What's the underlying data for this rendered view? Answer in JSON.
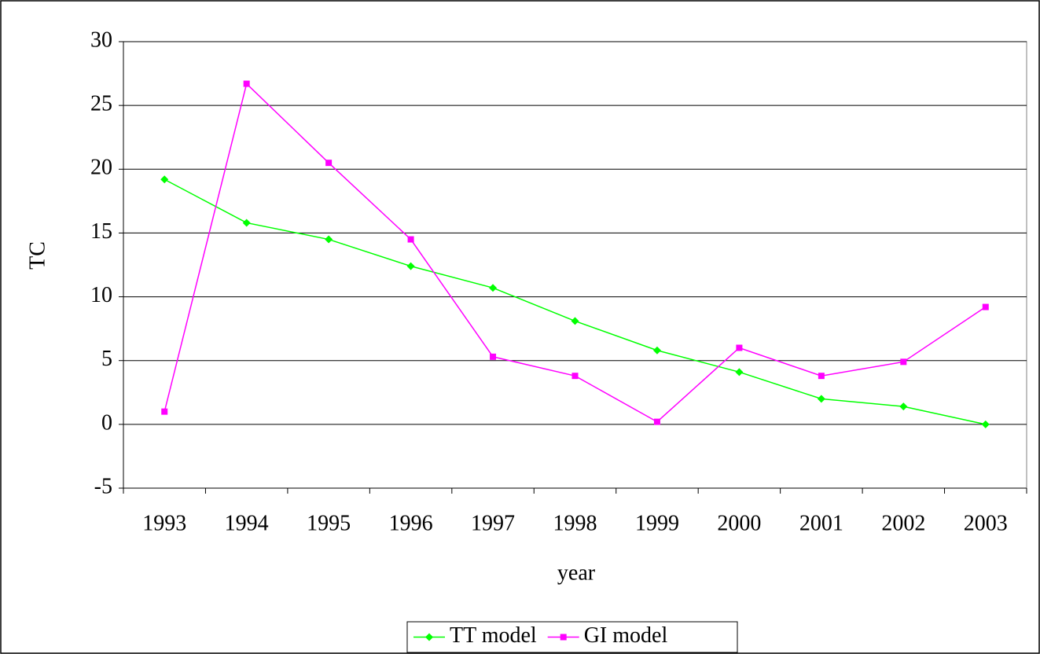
{
  "chart_data": {
    "type": "line",
    "x_label": "year",
    "y_label": "TC",
    "categories": [
      "1993",
      "1994",
      "1995",
      "1996",
      "1997",
      "1998",
      "1999",
      "2000",
      "2001",
      "2002",
      "2003"
    ],
    "series": [
      {
        "name": "TT model",
        "color": "#00ff00",
        "marker": "diamond",
        "values": [
          19.2,
          15.8,
          14.5,
          12.4,
          10.7,
          8.1,
          5.8,
          4.1,
          2.0,
          1.4,
          0
        ]
      },
      {
        "name": "GI model",
        "color": "#ff00ff",
        "marker": "square",
        "values": [
          1.0,
          26.7,
          20.5,
          14.5,
          5.3,
          3.8,
          0.2,
          6.0,
          3.8,
          4.9,
          9.2
        ]
      }
    ],
    "ylim": [
      -5,
      30
    ],
    "yticks": [
      -5,
      0,
      5,
      10,
      15,
      20,
      25,
      30
    ],
    "grid": true,
    "legend": "bottom"
  }
}
